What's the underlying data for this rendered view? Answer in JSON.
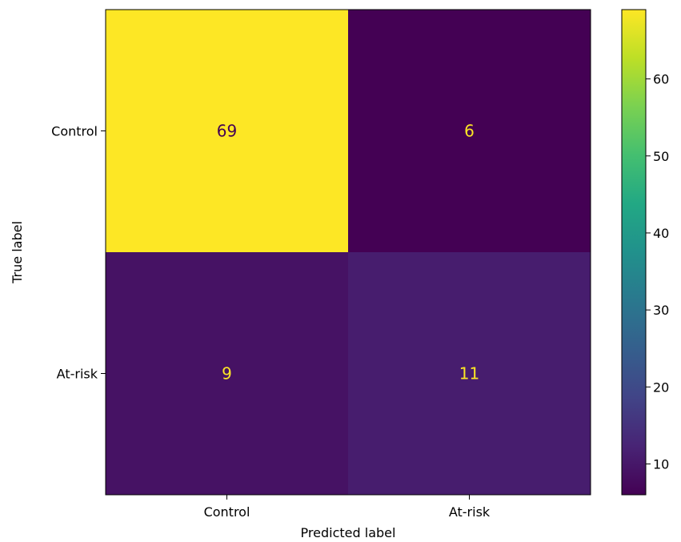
{
  "chart_data": {
    "type": "heatmap",
    "title": "",
    "xlabel": "Predicted label",
    "ylabel": "True label",
    "x_categories": [
      "Control",
      "At-risk"
    ],
    "y_categories": [
      "Control",
      "At-risk"
    ],
    "values": [
      [
        69,
        6
      ],
      [
        9,
        11
      ]
    ],
    "colormap": "viridis",
    "colorbar": {
      "range": [
        6,
        69
      ],
      "ticks": [
        10,
        20,
        30,
        40,
        50,
        60
      ],
      "tick_labels": [
        "10",
        "20",
        "30",
        "40",
        "50",
        "60"
      ]
    },
    "cell_text_colors": {
      "dark_bg": "#fde725",
      "light_bg": "#440154"
    }
  }
}
